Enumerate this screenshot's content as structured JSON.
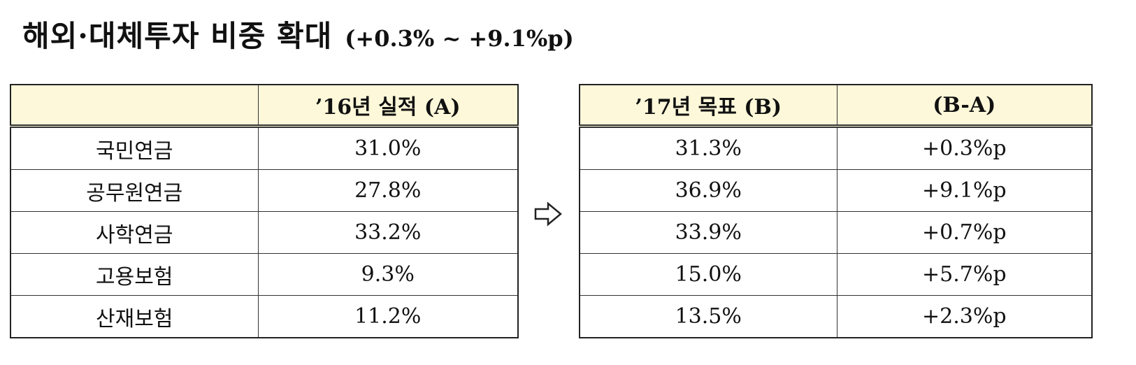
{
  "title": "해외·대체투자 비중 확대",
  "subtitle": "(+0.3% ~ +9.1%p)",
  "left_table": {
    "header": [
      "’16년 실적 (A)"
    ],
    "rows": [
      [
        "국민연금",
        "31.0%"
      ],
      [
        "공무원연금",
        "27.8%"
      ],
      [
        "사학연금",
        "33.2%"
      ],
      [
        "고용보험",
        "9.3%"
      ],
      [
        "산재보험",
        "11.2%"
      ]
    ]
  },
  "right_table": {
    "header": [
      "’17년 목표 (B)",
      "(B-A)"
    ],
    "rows": [
      [
        "31.3%",
        "+0.3%p"
      ],
      [
        "36.9%",
        "+9.1%p"
      ],
      [
        "33.9%",
        "+0.7%p"
      ],
      [
        "15.0%",
        "+5.7%p"
      ],
      [
        "13.5%",
        "+2.3%p"
      ]
    ]
  }
}
